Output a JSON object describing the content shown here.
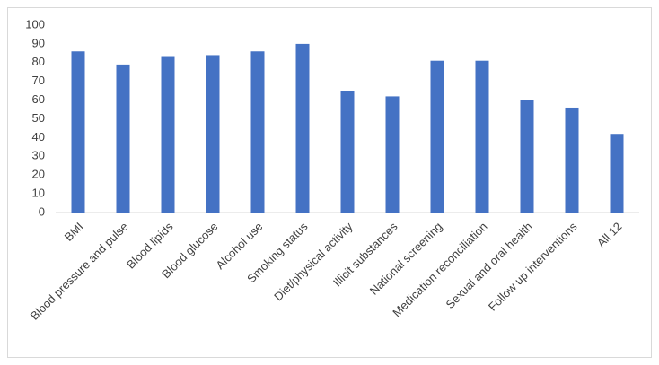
{
  "chart_data": {
    "type": "bar",
    "categories": [
      "BMI",
      "Blood pressure and pulse",
      "Blood lipids",
      "Blood glucose",
      "Alcohol use",
      "Smoking status",
      "Diet/physical activity",
      "Illicit substances",
      "National screening",
      "Medication reconciliation",
      "Sexual and oral health",
      "Follow up interventions",
      "All 12"
    ],
    "values": [
      86,
      79,
      83,
      84,
      86,
      90,
      65,
      62,
      81,
      81,
      60,
      56,
      42
    ],
    "color": "#4472c4",
    "ylim": [
      0,
      100
    ],
    "yticks": [
      0,
      10,
      20,
      30,
      40,
      50,
      60,
      70,
      80,
      90,
      100
    ],
    "grid": false
  }
}
